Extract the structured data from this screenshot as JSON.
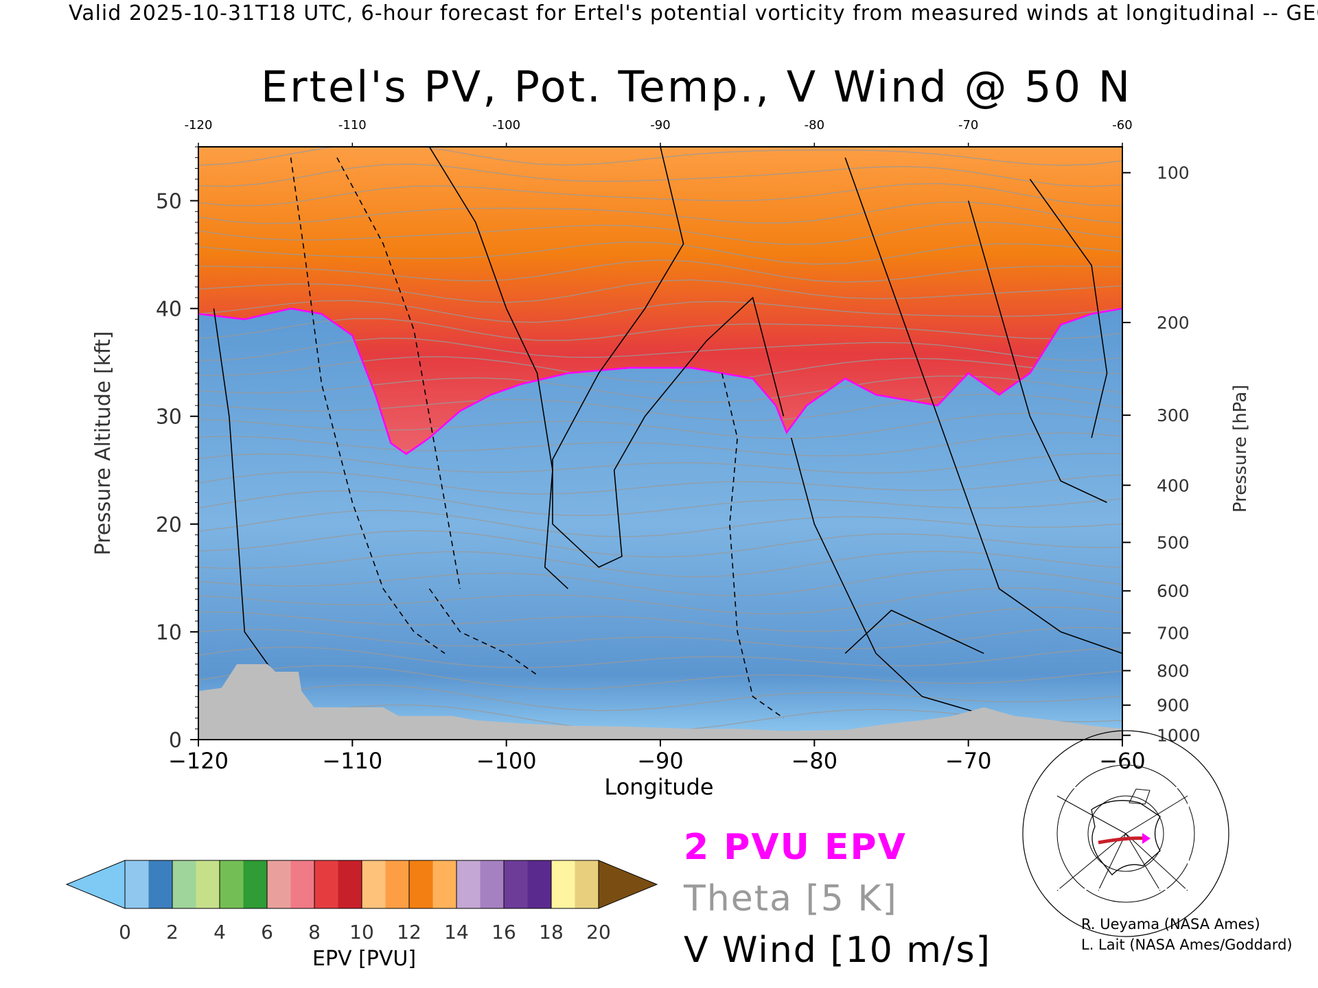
{
  "header": {
    "text": "Valid 2025-10-31T18 UTC, 6-hour forecast for Ertel's potential vorticity from measured winds at longitudinal -- GEOS"
  },
  "chart_data": {
    "type": "heatmap",
    "title": "Ertel's PV, Pot. Temp., V Wind @ 50 N",
    "xlabel": "Longitude",
    "ylabel_left": "Pressure Altitude [kft]",
    "ylabel_right": "Pressure [hPa]",
    "xlim": [
      -120,
      -60
    ],
    "ylim": [
      0,
      55
    ],
    "x_ticks": [
      "−120",
      "−110",
      "−100",
      "−90",
      "−80",
      "−70",
      "−60"
    ],
    "x_ticks_top": [
      "-120",
      "-110",
      "-100",
      "-90",
      "-80",
      "-70",
      "-60"
    ],
    "y_ticks": [
      0,
      10,
      20,
      30,
      40,
      50
    ],
    "pressure_ticks": [
      {
        "label": "100",
        "kft": 52.6
      },
      {
        "label": "200",
        "kft": 38.7
      },
      {
        "label": "300",
        "kft": 30.1
      },
      {
        "label": "400",
        "kft": 23.6
      },
      {
        "label": "500",
        "kft": 18.3
      },
      {
        "label": "600",
        "kft": 13.8
      },
      {
        "label": "700",
        "kft": 9.9
      },
      {
        "label": "800",
        "kft": 6.4
      },
      {
        "label": "900",
        "kft": 3.2
      },
      {
        "label": "1000",
        "kft": 0.4
      }
    ],
    "tropopause_kft": [
      [
        -120,
        39.5
      ],
      [
        -117,
        39
      ],
      [
        -114,
        40
      ],
      [
        -112,
        39.5
      ],
      [
        -110,
        37.5
      ],
      [
        -108.5,
        32
      ],
      [
        -107.5,
        27.5
      ],
      [
        -106.5,
        26.5
      ],
      [
        -105,
        28
      ],
      [
        -103,
        30.5
      ],
      [
        -101,
        32
      ],
      [
        -99,
        33
      ],
      [
        -96,
        34
      ],
      [
        -92,
        34.5
      ],
      [
        -88,
        34.5
      ],
      [
        -84,
        33.5
      ],
      [
        -82.5,
        31
      ],
      [
        -81.8,
        28.5
      ],
      [
        -80.5,
        31
      ],
      [
        -78,
        33.5
      ],
      [
        -76,
        32
      ],
      [
        -74,
        31.5
      ],
      [
        -72,
        31
      ],
      [
        -70,
        34
      ],
      [
        -68,
        32
      ],
      [
        -66,
        34
      ],
      [
        -64,
        38.5
      ],
      [
        -62,
        39.5
      ],
      [
        -60,
        40
      ]
    ],
    "topography_kft": [
      [
        -120,
        4.5
      ],
      [
        -118.5,
        4.8
      ],
      [
        -117.5,
        7
      ],
      [
        -115.5,
        7
      ],
      [
        -115,
        6.3
      ],
      [
        -113.5,
        6.3
      ],
      [
        -113.3,
        4.5
      ],
      [
        -112.5,
        3
      ],
      [
        -108,
        3
      ],
      [
        -107,
        2.2
      ],
      [
        -103.5,
        2.2
      ],
      [
        -102,
        1.8
      ],
      [
        -99,
        1.5
      ],
      [
        -96,
        1.3
      ],
      [
        -92,
        1.2
      ],
      [
        -88,
        1.0
      ],
      [
        -85,
        1.0
      ],
      [
        -82,
        0.8
      ],
      [
        -78,
        0.9
      ],
      [
        -75,
        1.5
      ],
      [
        -73,
        1.8
      ],
      [
        -71,
        2.2
      ],
      [
        -69,
        3
      ],
      [
        -67,
        2.2
      ],
      [
        -64.5,
        1.8
      ],
      [
        -62,
        1.3
      ],
      [
        -60,
        1.0
      ]
    ],
    "colorbar": {
      "label": "EPV [PVU]",
      "ticks": [
        "0",
        "2",
        "4",
        "6",
        "8",
        "10",
        "12",
        "14",
        "16",
        "18",
        "20"
      ],
      "colors": [
        "#8fc7ee",
        "#3c7fbf",
        "#9fd49a",
        "#c6e08a",
        "#74bf55",
        "#2f9c35",
        "#e9a09c",
        "#f07a86",
        "#e53c3f",
        "#c8202b",
        "#ffc27a",
        "#fd9e44",
        "#f37f12",
        "#ffb25a",
        "#c4a7d4",
        "#a681c2",
        "#6d3c99",
        "#5b2a8e",
        "#fff5a0",
        "#e7cf7d"
      ],
      "under_color": "#7ecaf5",
      "over_color": "#7a4e12"
    },
    "legend": [
      "2 PVU EPV",
      "Theta [5 K]",
      "V Wind [10 m/s]"
    ],
    "colors": {
      "pvu2": "#ff00ff",
      "theta": "#9a9a9a",
      "vwind": "#000000",
      "topography": "#bdbdbd"
    }
  },
  "credits": [
    "R. Ueyama (NASA Ames)",
    "L. Lait (NASA Ames/Goddard)"
  ]
}
